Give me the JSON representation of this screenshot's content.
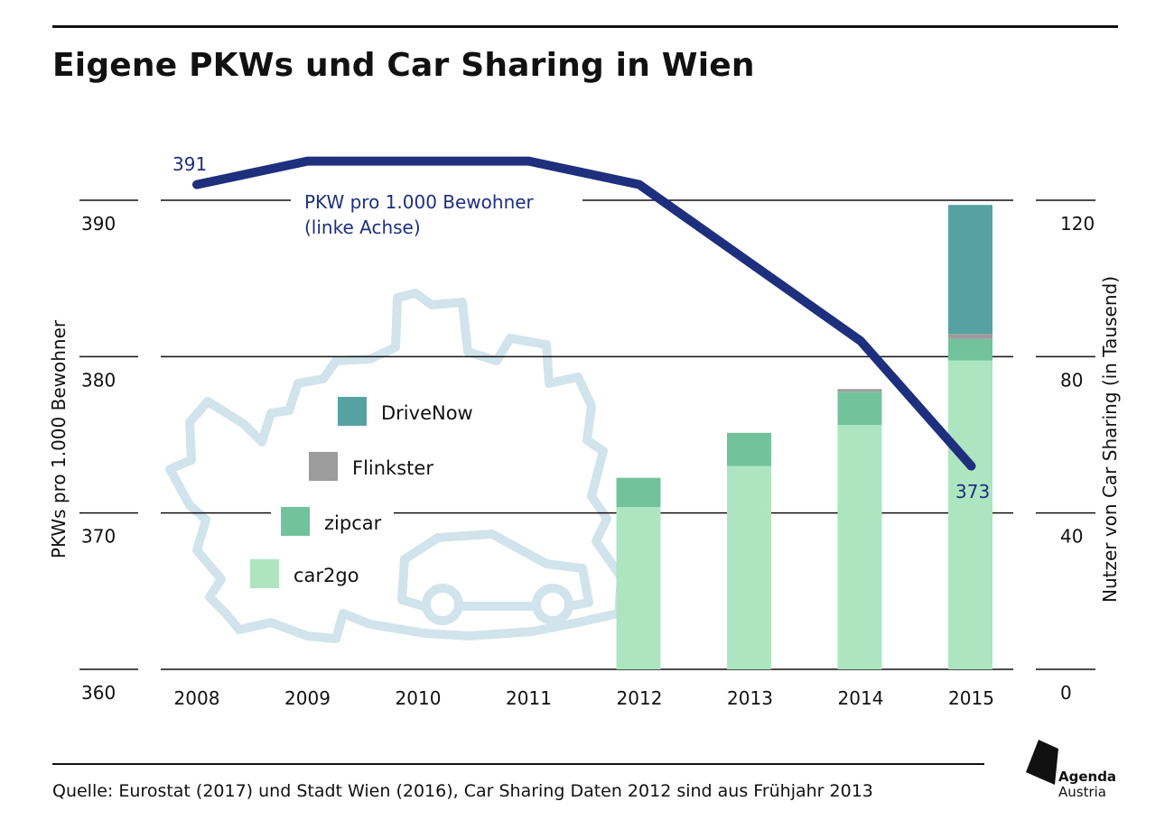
{
  "title": "Eigene PKWs und Car Sharing in Wien",
  "source": "Quelle: Eurostat (2017) und Stadt Wien (2016), Car Sharing Daten 2012 sind aus Frühjahr 2013",
  "logo": {
    "line1": "Agenda",
    "line2": "Austria"
  },
  "colors": {
    "line": "#1e2f7d",
    "DriveNow": "#56a2a2",
    "Flinkster": "#9c9c9c",
    "zipcar": "#72c39c",
    "car2go": "#ade5c0",
    "background_map": "#d1e4ec",
    "grid": "#111111"
  },
  "chart_data": {
    "type": "bar+line",
    "categories": [
      "2008",
      "2009",
      "2010",
      "2011",
      "2012",
      "2013",
      "2014",
      "2015"
    ],
    "ylabel_left": "PKWs pro 1.000 Bewohner",
    "ylabel_right": "Nutzer von Car Sharing (in Tausend)",
    "yticks_left": [
      "360",
      "370",
      "380",
      "390"
    ],
    "yticks_right": [
      "0",
      "40",
      "80",
      "120"
    ],
    "ylim_left": [
      360,
      393
    ],
    "ylim_right": [
      0,
      132
    ],
    "line": {
      "label": "PKW pro 1.000 Bewohner",
      "axis_note": "(linke Achse)",
      "values": [
        391,
        392.5,
        392.5,
        392.5,
        391,
        386,
        381,
        373
      ],
      "start_label": "391",
      "end_label": "373"
    },
    "legend": [
      "DriveNow",
      "Flinkster",
      "zipcar",
      "car2go"
    ],
    "stacked_series": [
      {
        "name": "car2go",
        "values": [
          null,
          null,
          null,
          null,
          41.5,
          52,
          62.5,
          79
        ]
      },
      {
        "name": "zipcar",
        "values": [
          null,
          null,
          null,
          null,
          7.5,
          8.5,
          8.5,
          5.5
        ]
      },
      {
        "name": "Flinkster",
        "values": [
          null,
          null,
          null,
          null,
          0,
          0,
          0.7,
          1.3
        ]
      },
      {
        "name": "DriveNow",
        "values": [
          null,
          null,
          null,
          null,
          0,
          0,
          0,
          33
        ]
      }
    ]
  }
}
